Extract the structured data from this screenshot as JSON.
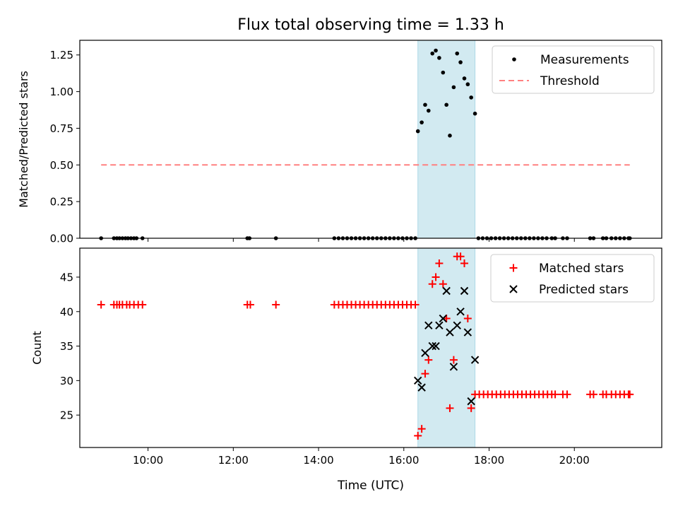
{
  "chart_data": {
    "type": "scatter",
    "title": "Flux total observing time = 1.33 h",
    "xlabel": "Time (UTC)",
    "x_units": "hours UTC",
    "xlim": [
      8.4,
      22.05
    ],
    "xticks": [
      10,
      12,
      14,
      16,
      18,
      20
    ],
    "xtick_labels": [
      "10:00",
      "12:00",
      "14:00",
      "16:00",
      "18:00",
      "20:00"
    ],
    "shaded_interval": {
      "start": 16.33,
      "end": 17.67,
      "color": "#add8e6"
    },
    "top": {
      "ylabel": "Matched/Predicted stars",
      "ylim": [
        0,
        1.35
      ],
      "yticks": [
        0,
        0.25,
        0.5,
        0.75,
        1.0,
        1.25
      ],
      "ytick_labels": [
        "0.00",
        "0.25",
        "0.50",
        "0.75",
        "1.00",
        "1.25"
      ],
      "legend": [
        "Measurements",
        "Threshold"
      ],
      "threshold": {
        "name": "Threshold",
        "value": 0.5,
        "x_start": 8.9,
        "x_end": 21.3,
        "color": "#ff8080"
      },
      "measurements": {
        "name": "Measurements",
        "color": "#000000",
        "x": [
          8.9,
          9.2,
          9.27,
          9.33,
          9.4,
          9.47,
          9.53,
          9.6,
          9.67,
          9.73,
          9.87,
          12.33,
          12.38,
          13.0,
          14.37,
          14.47,
          14.57,
          14.67,
          14.77,
          14.87,
          14.97,
          15.07,
          15.17,
          15.27,
          15.37,
          15.47,
          15.57,
          15.67,
          15.77,
          15.87,
          15.97,
          16.07,
          16.17,
          16.27,
          16.33,
          16.42,
          16.5,
          16.58,
          16.67,
          16.75,
          16.83,
          16.92,
          17.0,
          17.08,
          17.17,
          17.25,
          17.33,
          17.42,
          17.5,
          17.58,
          17.67,
          17.75,
          17.85,
          17.95,
          18.05,
          18.15,
          18.25,
          18.35,
          18.45,
          18.55,
          18.65,
          18.75,
          18.85,
          18.95,
          19.05,
          19.15,
          19.25,
          19.35,
          19.47,
          19.55,
          19.73,
          19.83,
          20.37,
          20.45,
          20.67,
          20.75,
          20.87,
          20.97,
          21.07,
          21.17,
          21.27,
          21.3
        ],
        "y": [
          0,
          0,
          0,
          0,
          0,
          0,
          0,
          0,
          0,
          0,
          0,
          0,
          0,
          0,
          0,
          0,
          0,
          0,
          0,
          0,
          0,
          0,
          0,
          0,
          0,
          0,
          0,
          0,
          0,
          0,
          0,
          0,
          0,
          0,
          0.73,
          0.79,
          0.91,
          0.87,
          1.26,
          1.28,
          1.23,
          1.13,
          0.91,
          0.7,
          1.03,
          1.26,
          1.2,
          1.09,
          1.05,
          0.96,
          0.85,
          0,
          0,
          0,
          0,
          0,
          0,
          0,
          0,
          0,
          0,
          0,
          0,
          0,
          0,
          0,
          0,
          0,
          0,
          0,
          0,
          0,
          0,
          0,
          0,
          0,
          0,
          0,
          0,
          0,
          0,
          0
        ]
      }
    },
    "bottom": {
      "ylabel": "Count",
      "ylim": [
        20.3,
        49.2
      ],
      "yticks": [
        25,
        30,
        35,
        40,
        45
      ],
      "ytick_labels": [
        "25",
        "30",
        "35",
        "40",
        "45"
      ],
      "legend": [
        "Matched stars",
        "Predicted stars"
      ],
      "matched": {
        "name": "Matched stars",
        "marker": "+",
        "color": "#ff0000",
        "x": [
          8.9,
          9.2,
          9.27,
          9.33,
          9.4,
          9.5,
          9.57,
          9.67,
          9.77,
          9.87,
          12.33,
          12.4,
          13.0,
          14.37,
          14.47,
          14.57,
          14.67,
          14.77,
          14.87,
          14.97,
          15.07,
          15.17,
          15.27,
          15.37,
          15.47,
          15.57,
          15.67,
          15.77,
          15.87,
          15.97,
          16.07,
          16.17,
          16.27,
          16.33,
          16.42,
          16.5,
          16.58,
          16.67,
          16.75,
          16.83,
          16.92,
          17.0,
          17.08,
          17.17,
          17.25,
          17.33,
          17.42,
          17.5,
          17.58,
          17.67,
          17.77,
          17.87,
          17.97,
          18.07,
          18.17,
          18.27,
          18.37,
          18.47,
          18.57,
          18.67,
          18.77,
          18.87,
          18.97,
          19.07,
          19.17,
          19.27,
          19.37,
          19.47,
          19.55,
          19.73,
          19.83,
          20.37,
          20.45,
          20.67,
          20.75,
          20.87,
          20.97,
          21.07,
          21.17,
          21.27,
          21.3
        ],
        "y": [
          41,
          41,
          41,
          41,
          41,
          41,
          41,
          41,
          41,
          41,
          41,
          41,
          41,
          41,
          41,
          41,
          41,
          41,
          41,
          41,
          41,
          41,
          41,
          41,
          41,
          41,
          41,
          41,
          41,
          41,
          41,
          41,
          41,
          22,
          23,
          31,
          33,
          44,
          45,
          47,
          44,
          39,
          26,
          33,
          48,
          48,
          47,
          39,
          26,
          28,
          28,
          28,
          28,
          28,
          28,
          28,
          28,
          28,
          28,
          28,
          28,
          28,
          28,
          28,
          28,
          28,
          28,
          28,
          28,
          28,
          28,
          28,
          28,
          28,
          28,
          28,
          28,
          28,
          28,
          28,
          28
        ]
      },
      "predicted": {
        "name": "Predicted stars",
        "marker": "x",
        "color": "#000000",
        "x": [
          16.33,
          16.42,
          16.5,
          16.58,
          16.67,
          16.75,
          16.83,
          16.92,
          17.0,
          17.08,
          17.17,
          17.25,
          17.33,
          17.42,
          17.5,
          17.58,
          17.67
        ],
        "y": [
          30,
          29,
          34,
          38,
          35,
          35,
          38,
          39,
          43,
          37,
          32,
          38,
          40,
          43,
          37,
          27,
          33
        ]
      }
    }
  }
}
